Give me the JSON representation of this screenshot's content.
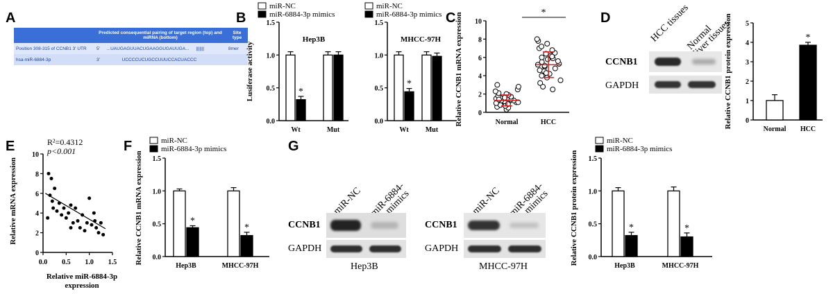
{
  "panels": [
    "A",
    "B",
    "C",
    "D",
    "E",
    "F",
    "G"
  ],
  "seq_table": {
    "headers": [
      "",
      "Predicted consequential pairing of target region (top) and miRNA (bottom)",
      "Site type"
    ],
    "rows": [
      {
        "name": "Position 308-315 of CCNB1 3' UTR",
        "end": "5'",
        "seq": "...UAUGAGUUACUGAAGGUGAUUGA...",
        "bars": "|||||||",
        "site": "8mer"
      },
      {
        "name": "hsa-miR-6884-3p",
        "end": "3'",
        "seq": "UCCCCUCUGCCUUUCCACUACCC",
        "bars": "",
        "site": ""
      }
    ]
  },
  "legend": {
    "nc": "miR-NC",
    "mimics": "miR-6884-3p mimics"
  },
  "colors": {
    "nc_fill": "#ffffff",
    "mimics_fill": "#000000",
    "red": "#d21f1f"
  },
  "charts": {
    "B1": {
      "title": "Hep3B",
      "ylabel": "Lusiferase activity"
    },
    "B2": {
      "title": "MHCC-97H"
    },
    "C": {
      "ylabel": "Relative CCNB1 mRNA expression"
    },
    "D": {
      "ylabel": "Relative CCNB1 protein expression"
    },
    "E": {
      "stats_r2": "R²=0.4312",
      "stats_p": "p<0.001",
      "ylabel": "Relative mRNA expression",
      "xlabel": "Relative miR-6884-3p expression"
    },
    "F": {
      "ylabel": "Relative CCNB1 mRNA expression"
    },
    "G": {
      "ylabel": "Relative CCNB1 protein expression"
    }
  },
  "blots": {
    "D": {
      "lanes": [
        "HCC tissues",
        "Normal liver tissues"
      ],
      "bands": [
        "CCNB1",
        "GAPDH"
      ]
    },
    "G1": {
      "lanes": [
        "miR-NC",
        "miR-6884-3p mimics"
      ],
      "bands": [
        "CCNB1",
        "GAPDH"
      ],
      "cell": "Hep3B"
    },
    "G2": {
      "lanes": [
        "miR-NC",
        "miR-6884-3p mimics"
      ],
      "bands": [
        "CCNB1",
        "GAPDH"
      ],
      "cell": "MHCC-97H"
    }
  },
  "chart_data": [
    {
      "id": "B1",
      "type": "bar",
      "title": "Hep3B",
      "ylabel": "Lusiferase activity",
      "categories": [
        "Wt",
        "Mut"
      ],
      "series": [
        {
          "name": "miR-NC",
          "values": [
            1.0,
            1.0
          ]
        },
        {
          "name": "miR-6884-3p mimics",
          "values": [
            0.32,
            1.0
          ]
        }
      ],
      "errors": [
        [
          0.05,
          0.05
        ],
        [
          0.05,
          0.05
        ]
      ],
      "ylim": [
        0,
        1.5
      ],
      "yticks": [
        "0.0",
        "0.5",
        "1.0",
        "1.5"
      ],
      "sig": [
        [
          0,
          1
        ]
      ]
    },
    {
      "id": "B2",
      "type": "bar",
      "title": "MHCC-97H",
      "categories": [
        "Wt",
        "Mut"
      ],
      "series": [
        {
          "name": "miR-NC",
          "values": [
            1.0,
            1.0
          ]
        },
        {
          "name": "miR-6884-3p mimics",
          "values": [
            0.44,
            0.98
          ]
        }
      ],
      "errors": [
        [
          0.05,
          0.05
        ],
        [
          0.05,
          0.05
        ]
      ],
      "ylim": [
        0,
        1.5
      ],
      "yticks": [
        "0.0",
        "0.5",
        "1.0",
        "1.5"
      ],
      "sig": [
        [
          0,
          1
        ]
      ]
    },
    {
      "id": "C",
      "type": "scatter",
      "categories": [
        "Normal",
        "HCC"
      ],
      "ylabel": "Relative CCNB1 mRNA expression",
      "ylim": [
        0,
        10
      ],
      "yticks": [
        "0",
        "2",
        "4",
        "6",
        "8",
        "10"
      ],
      "groups": [
        {
          "name": "Normal",
          "values": [
            0.3,
            0.5,
            0.6,
            0.8,
            0.9,
            1.0,
            1.0,
            1.1,
            1.2,
            1.2,
            1.3,
            1.3,
            1.4,
            1.5,
            1.5,
            1.6,
            1.7,
            1.8,
            1.9,
            2.0,
            2.1,
            2.3,
            2.5,
            2.8,
            3.0,
            0.7,
            1.1,
            1.4,
            1.6,
            0.9
          ],
          "mean": 1.3,
          "sd": 0.6
        },
        {
          "name": "HCC",
          "values": [
            2.5,
            2.8,
            3.2,
            3.5,
            3.8,
            4.0,
            4.2,
            4.5,
            4.6,
            4.8,
            5.0,
            5.1,
            5.2,
            5.3,
            5.5,
            5.6,
            5.8,
            6.0,
            6.2,
            6.4,
            6.5,
            6.8,
            7.0,
            7.2,
            7.5,
            7.8,
            8.0,
            4.3,
            5.9,
            6.1
          ],
          "mean": 5.2,
          "sd": 1.4
        }
      ],
      "significance": "*"
    },
    {
      "id": "D",
      "type": "bar",
      "categories": [
        "Normal",
        "HCC"
      ],
      "ylabel": "Relative CCNB1 protein expression",
      "values": [
        1.0,
        3.85
      ],
      "errors": [
        0.3,
        0.15
      ],
      "fills": [
        "#ffffff",
        "#000000"
      ],
      "ylim": [
        0,
        5
      ],
      "yticks": [
        "0",
        "1",
        "2",
        "3",
        "4",
        "5"
      ],
      "sig": [
        1
      ]
    },
    {
      "id": "E",
      "type": "scatter",
      "ylabel": "Relative mRNA expression",
      "xlabel": "Relative miR-6884-3p expression",
      "xlim": [
        0,
        1.5
      ],
      "ylim": [
        0,
        10
      ],
      "xticks": [
        "0.0",
        "0.5",
        "1.0",
        "1.5"
      ],
      "yticks": [
        "0",
        "2",
        "4",
        "6",
        "8",
        "10"
      ],
      "points": [
        [
          0.12,
          8.0
        ],
        [
          0.18,
          7.5
        ],
        [
          0.15,
          5.8
        ],
        [
          0.2,
          5.2
        ],
        [
          0.22,
          4.5
        ],
        [
          0.25,
          6.5
        ],
        [
          0.3,
          4.2
        ],
        [
          0.35,
          5.0
        ],
        [
          0.4,
          3.8
        ],
        [
          0.45,
          4.5
        ],
        [
          0.5,
          3.5
        ],
        [
          0.55,
          4.0
        ],
        [
          0.6,
          4.8
        ],
        [
          0.65,
          3.0
        ],
        [
          0.7,
          4.5
        ],
        [
          0.75,
          3.2
        ],
        [
          0.8,
          2.5
        ],
        [
          0.85,
          3.8
        ],
        [
          0.9,
          2.2
        ],
        [
          0.95,
          3.0
        ],
        [
          1.0,
          5.5
        ],
        [
          1.05,
          2.8
        ],
        [
          1.1,
          4.0
        ],
        [
          1.12,
          3.2
        ],
        [
          1.15,
          2.5
        ],
        [
          1.2,
          2.0
        ],
        [
          1.25,
          3.0
        ],
        [
          1.3,
          1.8
        ],
        [
          0.1,
          3.5
        ],
        [
          0.6,
          2.5
        ]
      ],
      "fit": {
        "x1": 0.05,
        "y1": 6.0,
        "x2": 1.35,
        "y2": 2.4
      },
      "stats": [
        "R²=0.4312",
        "p<0.001"
      ]
    },
    {
      "id": "F",
      "type": "bar",
      "ylabel": "Relative CCNB1 mRNA expression",
      "categories": [
        "Hep3B",
        "MHCC-97H"
      ],
      "series": [
        {
          "name": "miR-NC",
          "values": [
            1.0,
            1.0
          ]
        },
        {
          "name": "miR-6884-3p mimics",
          "values": [
            0.44,
            0.32
          ]
        }
      ],
      "errors": [
        [
          0.03,
          0.03
        ],
        [
          0.05,
          0.05
        ]
      ],
      "ylim": [
        0,
        1.5
      ],
      "yticks": [
        "0.0",
        "0.5",
        "1.0",
        "1.5"
      ],
      "sig": [
        [
          0,
          1
        ],
        [
          1,
          1
        ]
      ]
    },
    {
      "id": "G",
      "type": "bar",
      "ylabel": "Relative CCNB1 protein expression",
      "categories": [
        "Hep3B",
        "MHCC-97H"
      ],
      "series": [
        {
          "name": "miR-NC",
          "values": [
            1.0,
            1.0
          ]
        },
        {
          "name": "miR-6884-3p mimics",
          "values": [
            0.32,
            0.3
          ]
        }
      ],
      "errors": [
        [
          0.05,
          0.05
        ],
        [
          0.06,
          0.06
        ]
      ],
      "ylim": [
        0,
        1.5
      ],
      "yticks": [
        "0.0",
        "0.5",
        "1.0",
        "1.5"
      ],
      "sig": [
        [
          0,
          1
        ],
        [
          1,
          1
        ]
      ]
    }
  ]
}
